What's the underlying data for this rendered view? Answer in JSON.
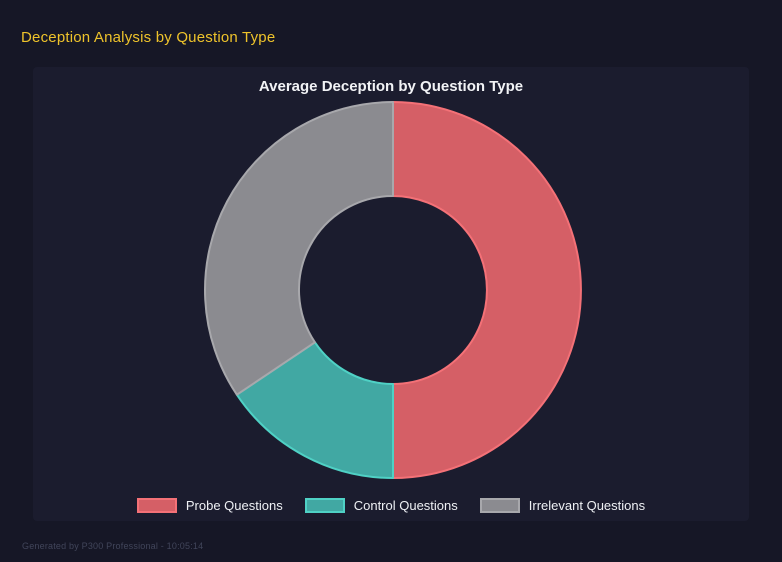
{
  "page": {
    "title": "Deception Analysis by Question Type",
    "footer": "Generated by P300 Professional - 10:05:14"
  },
  "colors": {
    "page_background": "#161726",
    "panel_background": "#1b1c2e",
    "page_title": "#eec32b",
    "chart_title": "#f2f3f6",
    "legend_text": "#eef0f4",
    "footer_text": "#41455a"
  },
  "chart_data": {
    "type": "pie",
    "subtype": "doughnut",
    "title": "Average Deception by Question Type",
    "categories": [
      "Probe Questions",
      "Control Questions",
      "Irrelevant Questions"
    ],
    "values": [
      50.0,
      15.6,
      34.4
    ],
    "values_unit": "percent_of_ring",
    "start_angle_deg_from_top": 0,
    "direction": "clockwise",
    "cutout_ratio": 0.5,
    "legend_position": "bottom",
    "segments": [
      {
        "label": "Probe Questions",
        "percent": 50.0,
        "fill": "#d55f66",
        "border": "#f47177"
      },
      {
        "label": "Control Questions",
        "percent": 15.6,
        "fill": "#41a8a3",
        "border": "#4fd1c5"
      },
      {
        "label": "Irrelevant Questions",
        "percent": 34.4,
        "fill": "#8b8b90",
        "border": "#a8a8ac"
      }
    ]
  }
}
